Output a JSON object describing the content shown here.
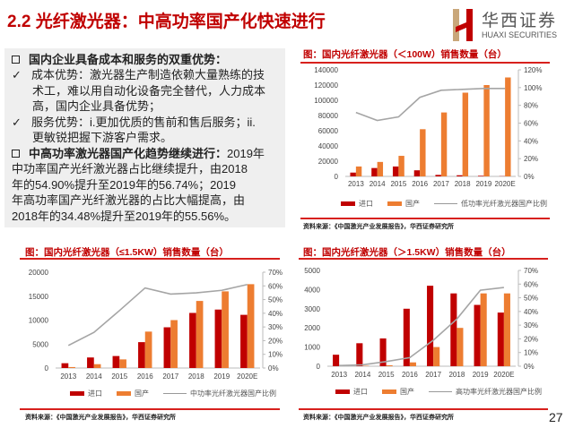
{
  "header": {
    "title": "2.2 光纤激光器：中高功率国产化快速进行",
    "logo_cn": "华西证券",
    "logo_en": "HUAXI SECURITIES"
  },
  "text": {
    "b1_head": "国内企业具备成本和服务的双重优势：",
    "c1_l1": "成本优势：激光器生产制造依赖大量熟练的技",
    "c1_l2": "术工，难以用自动化设备完全替代，人力成本",
    "c1_l3": "高，国内企业具备优势；",
    "c2_l1": "服务优势：i.更加优质的售前和售后服务；ii.",
    "c2_l2": "更敏锐把握下游客户需求。",
    "b2_head": "中高功率激光器国产化趋势继续进行：",
    "b2_l1": "2019年",
    "b2_l2": "中功率国产光纤激光器占比继续提升，由2018",
    "b2_l3": "年的54.90%提升至2019年的56.74%；2019",
    "b2_l4": "年高功率国产光纤激光器的占比大幅提高，由",
    "b2_l5": "2018年的34.48%提升至2019年的55.56%。",
    "check": "✓"
  },
  "colors": {
    "import": "#c00000",
    "domestic": "#ed7d31",
    "ratio": "#a5a5a5",
    "accent": "#d7201d"
  },
  "source": "资料来源：《中国激光产业发展报告》，华西证券研究所",
  "page_number": "27",
  "chart_data": [
    {
      "type": "bar",
      "title": "图：国内光纤激光器（＜100W）销售数量（台）",
      "categories": [
        "2013",
        "2014",
        "2015",
        "2016",
        "2017",
        "2018",
        "2019",
        "2020E"
      ],
      "series": [
        {
          "name": "进口",
          "type": "bar",
          "axis": "left",
          "values": [
            5000,
            11000,
            13000,
            8000,
            2000,
            1500,
            800,
            300
          ]
        },
        {
          "name": "国产",
          "type": "bar",
          "axis": "left",
          "values": [
            13000,
            19000,
            27000,
            62000,
            84000,
            110000,
            120000,
            130000
          ]
        },
        {
          "name": "低功率光纤激光器国产比例",
          "type": "line",
          "axis": "right",
          "values": [
            72,
            63,
            67,
            89,
            97,
            98,
            99,
            99
          ]
        }
      ],
      "ylim": [
        0,
        140000
      ],
      "yticks": [
        "0",
        "20000",
        "40000",
        "60000",
        "80000",
        "100000",
        "120000",
        "140000"
      ],
      "y2lim": [
        0,
        120
      ],
      "y2ticks": [
        "0%",
        "20%",
        "40%",
        "60%",
        "80%",
        "100%",
        "120%"
      ],
      "grid": false,
      "legend": "bottom"
    },
    {
      "type": "bar",
      "title": "图：国内光纤激光器（≤1.5KW）销售数量（台）",
      "categories": [
        "2013",
        "2014",
        "2015",
        "2016",
        "2017",
        "2018",
        "2019",
        "2020E"
      ],
      "series": [
        {
          "name": "进口",
          "type": "bar",
          "axis": "left",
          "values": [
            1000,
            2200,
            2500,
            5400,
            8500,
            11500,
            12200,
            11100
          ]
        },
        {
          "name": "国产",
          "type": "bar",
          "axis": "left",
          "values": [
            200,
            800,
            1800,
            7600,
            10000,
            14000,
            16000,
            17500
          ]
        },
        {
          "name": "中功率光纤激光器国产比例",
          "type": "line",
          "axis": "right",
          "values": [
            16.5,
            26,
            42,
            58.5,
            54,
            54.9,
            56.74,
            61
          ]
        }
      ],
      "ylim": [
        0,
        20000
      ],
      "yticks": [
        "0",
        "5000",
        "10000",
        "15000",
        "20000"
      ],
      "y2lim": [
        0,
        70
      ],
      "y2ticks": [
        "0%",
        "10%",
        "20%",
        "30%",
        "40%",
        "50%",
        "60%",
        "70%"
      ],
      "grid": false,
      "legend": "bottom"
    },
    {
      "type": "bar",
      "title": "图：国内光纤激光器（＞1.5KW）销售数量（台）",
      "categories": [
        "2013",
        "2014",
        "2015",
        "2016",
        "2017",
        "2018",
        "2019",
        "2020E"
      ],
      "series": [
        {
          "name": "进口",
          "type": "bar",
          "axis": "left",
          "values": [
            600,
            1200,
            1450,
            3000,
            4200,
            3800,
            3200,
            2800
          ]
        },
        {
          "name": "国产",
          "type": "bar",
          "axis": "left",
          "values": [
            0,
            20,
            50,
            200,
            1000,
            2000,
            3800,
            3800
          ]
        },
        {
          "name": "高功率光纤激光器国产比例",
          "type": "line",
          "axis": "right",
          "values": [
            0.5,
            1,
            3.4,
            6.3,
            19,
            34.48,
            55.56,
            57.5
          ]
        }
      ],
      "ylim": [
        0,
        5000
      ],
      "yticks": [
        "0",
        "1000",
        "2000",
        "3000",
        "4000",
        "5000"
      ],
      "y2lim": [
        0,
        70
      ],
      "y2ticks": [
        "0%",
        "10%",
        "20%",
        "30%",
        "40%",
        "50%",
        "60%",
        "70%"
      ],
      "grid": false,
      "legend": "bottom"
    }
  ]
}
